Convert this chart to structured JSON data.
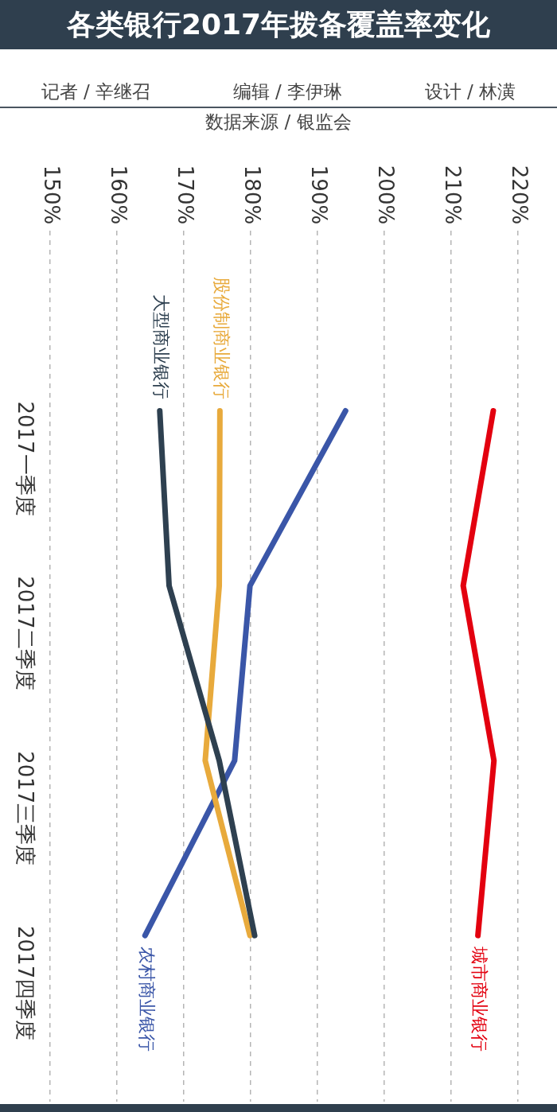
{
  "chart_data": {
    "type": "line",
    "orientation": "horizontal",
    "title": "各类银行2017年拨备覆盖率变化",
    "annotations": [
      "记者 / 辛继召",
      "编辑 / 李伊琳",
      "设计 / 林潢",
      "数据来源 / 银监会"
    ],
    "categories": [
      "2017一季度",
      "2017二季度",
      "2017三季度",
      "2017四季度"
    ],
    "series": [
      {
        "name": "大型商业银行",
        "color": "#2e4050",
        "values": [
          166.4,
          167.8,
          175.3,
          180.6
        ]
      },
      {
        "name": "股份制商业银行",
        "color": "#e8aa3c",
        "values": [
          175.4,
          175.3,
          173.2,
          179.9
        ]
      },
      {
        "name": "城市商业银行",
        "color": "#e3000f",
        "values": [
          216.3,
          211.8,
          216.4,
          214.0
        ]
      },
      {
        "name": "农村商业银行",
        "color": "#3a56a8",
        "values": [
          194.2,
          179.9,
          177.6,
          164.2
        ]
      }
    ],
    "xlim": [
      150,
      220
    ],
    "xticks": [
      {
        "value": 150,
        "label": "150%"
      },
      {
        "value": 160,
        "label": "160%"
      },
      {
        "value": 170,
        "label": "170%"
      },
      {
        "value": 180,
        "label": "180%"
      },
      {
        "value": 190,
        "label": "190%"
      },
      {
        "value": 200,
        "label": "200%"
      },
      {
        "value": 210,
        "label": "210%"
      },
      {
        "value": 220,
        "label": "220%"
      }
    ],
    "grid": "x",
    "marker": "none"
  }
}
